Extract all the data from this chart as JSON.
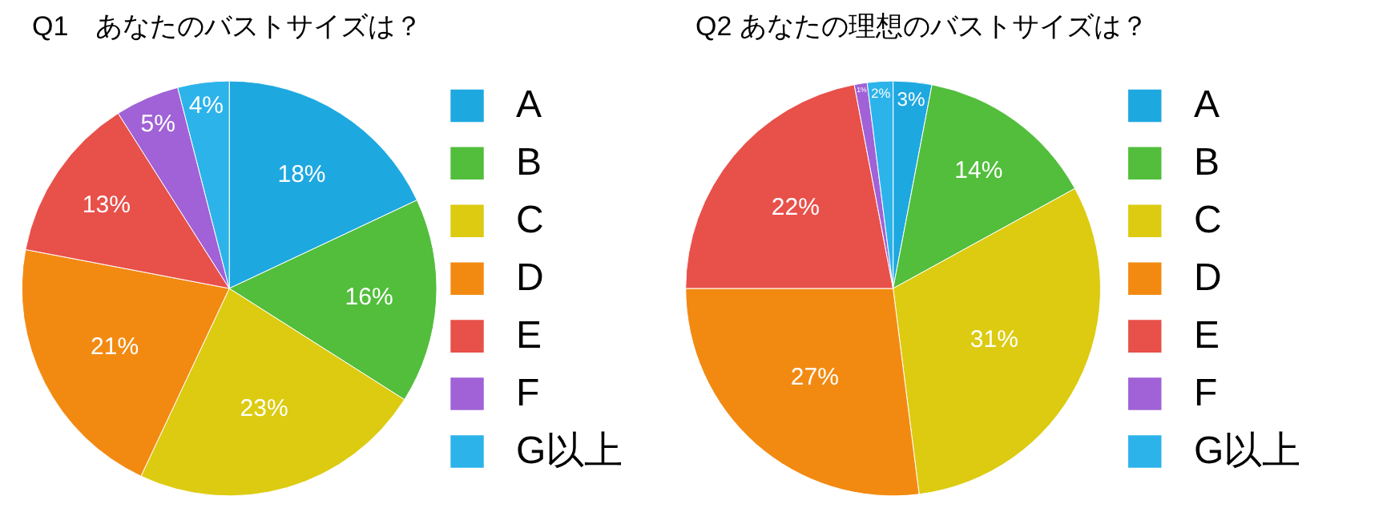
{
  "chart_data": [
    {
      "type": "pie",
      "title": "Q1　あなたのバストサイズは？",
      "categories": [
        "A",
        "B",
        "C",
        "D",
        "E",
        "F",
        "G以上"
      ],
      "values": [
        18,
        16,
        23,
        21,
        13,
        5,
        4
      ],
      "value_labels": [
        "18%",
        "16%",
        "23%",
        "21%",
        "13%",
        "5%",
        "4%"
      ],
      "colors": [
        "#1ea8e0",
        "#52be3c",
        "#dccb10",
        "#f28a12",
        "#e8504a",
        "#a062d6",
        "#2cb3ea"
      ],
      "legend": "right"
    },
    {
      "type": "pie",
      "title": "Q2 あなたの理想のバストサイズは？",
      "categories": [
        "A",
        "B",
        "C",
        "D",
        "E",
        "F",
        "G以上"
      ],
      "values": [
        3,
        14,
        31,
        27,
        22,
        1,
        2
      ],
      "value_labels": [
        "3%",
        "14%",
        "31%",
        "27%",
        "22%",
        "1%",
        "2%"
      ],
      "colors": [
        "#1ea8e0",
        "#52be3c",
        "#dccb10",
        "#f28a12",
        "#e8504a",
        "#a062d6",
        "#2cb3ea"
      ],
      "legend": "right"
    }
  ]
}
